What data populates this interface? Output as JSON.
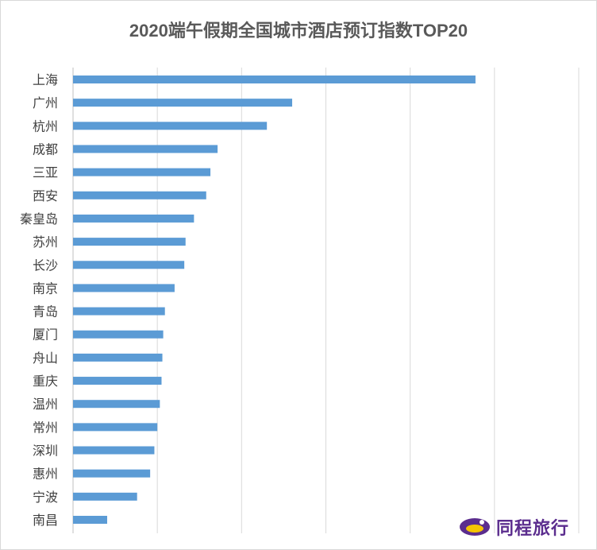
{
  "chart_data": {
    "type": "bar",
    "orientation": "horizontal",
    "title": "2020端午假期全国城市酒店预订指数TOP20",
    "categories": [
      "上海",
      "广州",
      "杭州",
      "成都",
      "三亚",
      "西安",
      "秦皇岛",
      "苏州",
      "长沙",
      "南京",
      "青岛",
      "厦门",
      "舟山",
      "重庆",
      "温州",
      "常州",
      "深圳",
      "惠州",
      "宁波",
      "南昌"
    ],
    "values": [
      95.5,
      52,
      46,
      34.3,
      32.6,
      31.6,
      28.7,
      26.7,
      26.4,
      24.1,
      21.8,
      21.4,
      21.2,
      21.0,
      20.6,
      20.0,
      19.3,
      18.3,
      15.2,
      8.1
    ],
    "xlim": [
      0,
      120
    ],
    "grid": true,
    "bar_color": "#5b9bd5",
    "legend": false
  },
  "logo": {
    "text": "同程旅行",
    "icon": "tongcheng-logo-icon",
    "color": "#5b2d8e",
    "accent": "#f5c400"
  }
}
